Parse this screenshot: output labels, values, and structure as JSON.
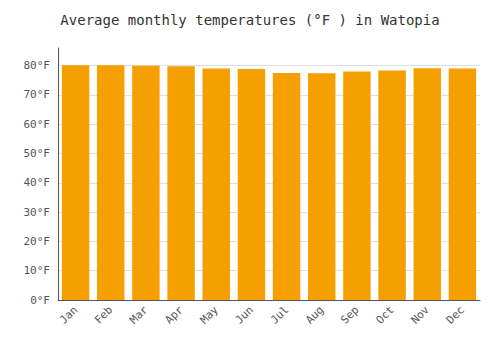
{
  "chart_data": {
    "type": "bar",
    "title": "Average monthly temperatures (°F ) in Watopia",
    "categories": [
      "Jan",
      "Feb",
      "Mar",
      "Apr",
      "May",
      "Jun",
      "Jul",
      "Aug",
      "Sep",
      "Oct",
      "Nov",
      "Dec"
    ],
    "values": [
      80.1,
      80.1,
      79.9,
      79.8,
      79.0,
      78.8,
      77.5,
      77.4,
      78.0,
      78.3,
      79.1,
      79.0
    ],
    "color": "#F5A000",
    "ylim": [
      0,
      86
    ],
    "yticks": [
      {
        "value": 0,
        "label": "0°F"
      },
      {
        "value": 10,
        "label": "10°F"
      },
      {
        "value": 20,
        "label": "20°F"
      },
      {
        "value": 30,
        "label": "30°F"
      },
      {
        "value": 40,
        "label": "40°F"
      },
      {
        "value": 50,
        "label": "50°F"
      },
      {
        "value": 60,
        "label": "60°F"
      },
      {
        "value": 70,
        "label": "70°F"
      },
      {
        "value": 80,
        "label": "80°F"
      }
    ],
    "grid": true
  }
}
